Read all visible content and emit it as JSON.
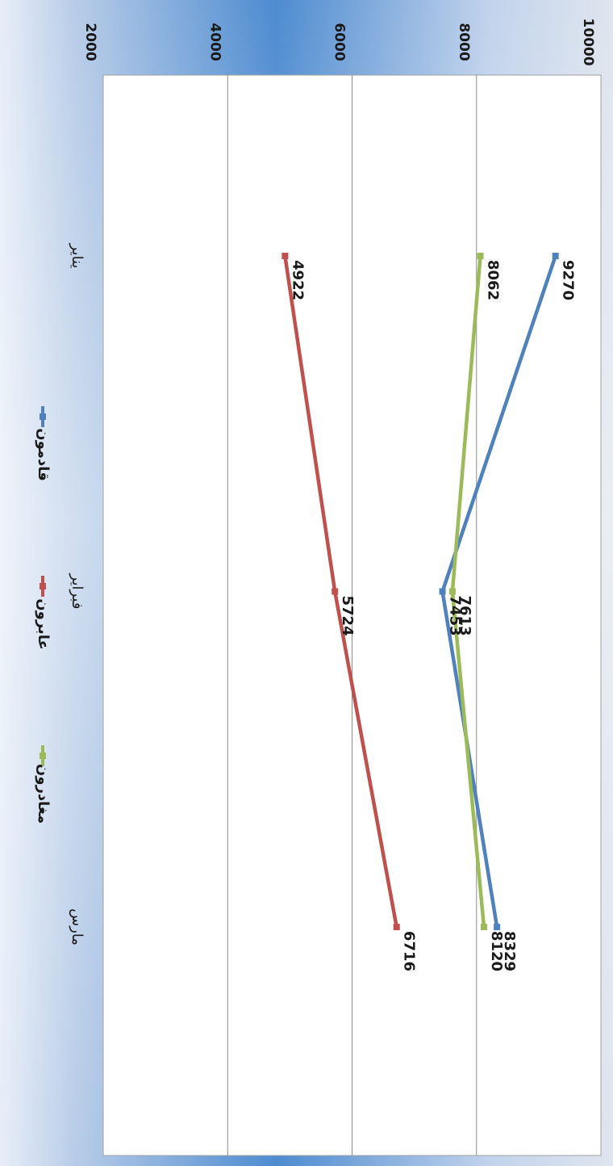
{
  "chart_data": {
    "type": "line",
    "title": "",
    "xlabel": "",
    "ylabel": "",
    "categories": [
      "يناير",
      "فبراير",
      "مارس"
    ],
    "ylim": [
      2000,
      10000
    ],
    "yticks": [
      2000,
      4000,
      6000,
      8000,
      10000
    ],
    "grid": true,
    "legend_position": "bottom",
    "series": [
      {
        "name": "قادمون",
        "color": "#4F81BD",
        "values": [
          9270,
          7453,
          8329
        ]
      },
      {
        "name": "عابرون",
        "color": "#C0504D",
        "values": [
          4922,
          5724,
          6716
        ]
      },
      {
        "name": "مغادرون",
        "color": "#9BBB59",
        "values": [
          8062,
          7613,
          8120
        ]
      }
    ]
  }
}
